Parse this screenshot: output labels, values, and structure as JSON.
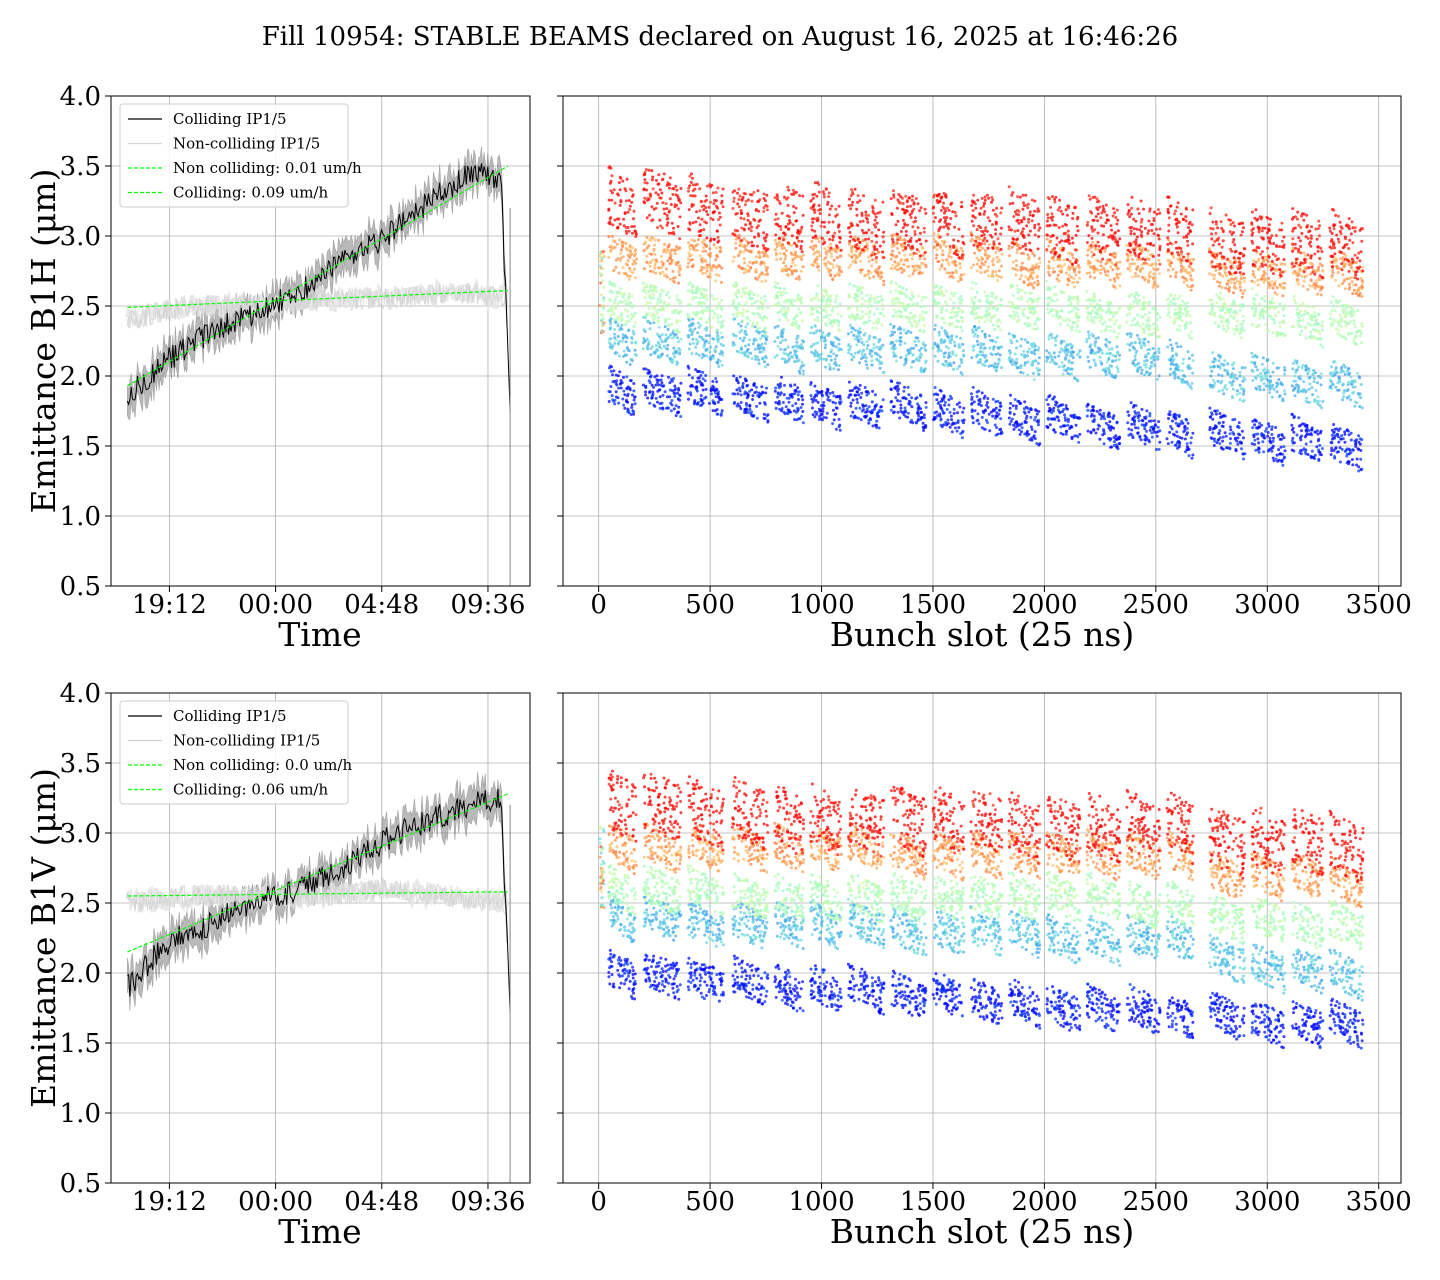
{
  "title": "Fill 10954: STABLE BEAMS declared on August 16, 2025 at 16:46:26",
  "colors": {
    "colliding": "#000000",
    "non_colliding": "#d3d3d3",
    "fit": "#00ff00",
    "band": "#808080",
    "grid": "#b0b0b0"
  },
  "chart_data": [
    {
      "type": "line",
      "panel": "B1H time evolution",
      "xlabel": "Time",
      "ylabel": "Emittance B1H (μm)",
      "ylim": [
        0.5,
        4.0
      ],
      "yticks": [
        "0.5",
        "1.0",
        "1.5",
        "2.0",
        "2.5",
        "3.0",
        "3.5",
        "4.0"
      ],
      "xlim_hours": [
        -7.44,
        11.5
      ],
      "xticks": [
        {
          "label": "19:12",
          "hours": -4.8
        },
        {
          "label": "00:00",
          "hours": 0
        },
        {
          "label": "04:48",
          "hours": 4.8
        },
        {
          "label": "09:36",
          "hours": 9.6
        }
      ],
      "grid": true,
      "legend_position": "upper-left",
      "legend": [
        {
          "label": "Colliding IP1/5",
          "style": "solid",
          "color": "#000000"
        },
        {
          "label": "Non-colliding IP1/5",
          "style": "solid",
          "color": "#d3d3d3"
        },
        {
          "label": "Non colliding: 0.01 um/h",
          "style": "dashed",
          "color": "#00ff00"
        },
        {
          "label": "Colliding: 0.09 um/h",
          "style": "dashed",
          "color": "#00ff00"
        }
      ],
      "series": [
        {
          "name": "Colliding IP1/5",
          "x_hours": [
            -6.7,
            -5.0,
            -3.0,
            -1.0,
            1.0,
            3.0,
            5.0,
            7.0,
            8.8,
            10.2,
            10.6
          ],
          "values": [
            1.85,
            2.1,
            2.3,
            2.45,
            2.6,
            2.8,
            3.0,
            3.25,
            3.45,
            3.4,
            1.75
          ]
        },
        {
          "name": "Non-colliding IP1/5",
          "x_hours": [
            -6.7,
            -4.0,
            -1.0,
            2.0,
            5.0,
            8.0,
            10.5
          ],
          "values": [
            2.4,
            2.5,
            2.5,
            2.55,
            2.55,
            2.6,
            2.55
          ]
        },
        {
          "name": "Non colliding: 0.01 um/h",
          "x_hours": [
            -6.7,
            10.5
          ],
          "values": [
            2.49,
            2.61
          ]
        },
        {
          "name": "Colliding: 0.09 um/h",
          "x_hours": [
            -6.7,
            10.5
          ],
          "values": [
            1.93,
            3.5
          ]
        }
      ]
    },
    {
      "type": "scatter",
      "panel": "B1H per bunch",
      "xlabel": "Bunch slot (25 ns)",
      "xlim": [
        -160,
        3600
      ],
      "xticks": [
        "0",
        "500",
        "1000",
        "1500",
        "2000",
        "2500",
        "3000",
        "3500"
      ],
      "ylim": [
        0.5,
        4.0
      ],
      "grid": true,
      "colormap": "rainbow",
      "trains": [
        {
          "start": 45,
          "end": 170,
          "bands": [
            1.95,
            2.3,
            2.55,
            2.9,
            3.3
          ]
        },
        {
          "start": 200,
          "end": 370,
          "bands": [
            1.95,
            2.3,
            2.55,
            2.9,
            3.3
          ]
        },
        {
          "start": 400,
          "end": 560,
          "bands": [
            1.95,
            2.3,
            2.55,
            2.9,
            3.25
          ]
        },
        {
          "start": 600,
          "end": 760,
          "bands": [
            1.9,
            2.3,
            2.55,
            2.9,
            3.2
          ]
        },
        {
          "start": 790,
          "end": 920,
          "bands": [
            1.9,
            2.25,
            2.55,
            2.9,
            3.2
          ]
        },
        {
          "start": 950,
          "end": 1090,
          "bands": [
            1.85,
            2.25,
            2.55,
            2.9,
            3.2
          ]
        },
        {
          "start": 1120,
          "end": 1280,
          "bands": [
            1.85,
            2.25,
            2.55,
            2.9,
            3.15
          ]
        },
        {
          "start": 1310,
          "end": 1470,
          "bands": [
            1.85,
            2.25,
            2.55,
            2.9,
            3.15
          ]
        },
        {
          "start": 1500,
          "end": 1640,
          "bands": [
            1.8,
            2.25,
            2.55,
            2.9,
            3.15
          ]
        },
        {
          "start": 1670,
          "end": 1810,
          "bands": [
            1.8,
            2.25,
            2.55,
            2.9,
            3.15
          ]
        },
        {
          "start": 1840,
          "end": 1980,
          "bands": [
            1.75,
            2.2,
            2.55,
            2.85,
            3.15
          ]
        },
        {
          "start": 2010,
          "end": 2160,
          "bands": [
            1.75,
            2.2,
            2.55,
            2.85,
            3.1
          ]
        },
        {
          "start": 2190,
          "end": 2340,
          "bands": [
            1.7,
            2.2,
            2.5,
            2.85,
            3.1
          ]
        },
        {
          "start": 2370,
          "end": 2520,
          "bands": [
            1.7,
            2.2,
            2.5,
            2.85,
            3.1
          ]
        },
        {
          "start": 2550,
          "end": 2670,
          "bands": [
            1.65,
            2.15,
            2.5,
            2.85,
            3.1
          ]
        },
        {
          "start": 2740,
          "end": 2900,
          "bands": [
            1.65,
            2.05,
            2.5,
            2.8,
            3.0
          ]
        },
        {
          "start": 2930,
          "end": 3080,
          "bands": [
            1.6,
            2.05,
            2.5,
            2.8,
            3.0
          ]
        },
        {
          "start": 3110,
          "end": 3250,
          "bands": [
            1.6,
            2.0,
            2.45,
            2.8,
            3.0
          ]
        },
        {
          "start": 3280,
          "end": 3430,
          "bands": [
            1.55,
            2.0,
            2.45,
            2.8,
            3.0
          ]
        }
      ]
    },
    {
      "type": "line",
      "panel": "B1V time evolution",
      "xlabel": "Time",
      "ylabel": "Emittance B1V (μm)",
      "ylim": [
        0.5,
        4.0
      ],
      "yticks": [
        "0.5",
        "1.0",
        "1.5",
        "2.0",
        "2.5",
        "3.0",
        "3.5",
        "4.0"
      ],
      "xlim_hours": [
        -7.44,
        11.5
      ],
      "xticks": [
        {
          "label": "19:12",
          "hours": -4.8
        },
        {
          "label": "00:00",
          "hours": 0
        },
        {
          "label": "04:48",
          "hours": 4.8
        },
        {
          "label": "09:36",
          "hours": 9.6
        }
      ],
      "grid": true,
      "legend_position": "upper-left",
      "legend": [
        {
          "label": "Colliding IP1/5",
          "style": "solid",
          "color": "#000000"
        },
        {
          "label": "Non-colliding IP1/5",
          "style": "solid",
          "color": "#d3d3d3"
        },
        {
          "label": "Non colliding: 0.0 um/h",
          "style": "dashed",
          "color": "#00ff00"
        },
        {
          "label": "Colliding: 0.06 um/h",
          "style": "dashed",
          "color": "#00ff00"
        }
      ],
      "series": [
        {
          "name": "Colliding IP1/5",
          "x_hours": [
            -6.7,
            -5.0,
            -3.0,
            -1.0,
            1.0,
            3.0,
            5.0,
            7.0,
            8.8,
            10.2,
            10.6
          ],
          "values": [
            1.9,
            2.2,
            2.35,
            2.5,
            2.6,
            2.75,
            2.95,
            3.1,
            3.2,
            3.25,
            1.72
          ]
        },
        {
          "name": "Non-colliding IP1/5",
          "x_hours": [
            -6.7,
            -4.0,
            -1.0,
            2.0,
            5.0,
            8.0,
            10.5
          ],
          "values": [
            2.5,
            2.55,
            2.55,
            2.55,
            2.6,
            2.55,
            2.5
          ]
        },
        {
          "name": "Non colliding: 0.0 um/h",
          "x_hours": [
            -6.7,
            10.5
          ],
          "values": [
            2.55,
            2.58
          ]
        },
        {
          "name": "Colliding: 0.06 um/h",
          "x_hours": [
            -6.7,
            10.5
          ],
          "values": [
            2.15,
            3.28
          ]
        }
      ]
    },
    {
      "type": "scatter",
      "panel": "B1V per bunch",
      "xlabel": "Bunch slot (25 ns)",
      "xlim": [
        -160,
        3600
      ],
      "xticks": [
        "0",
        "500",
        "1000",
        "1500",
        "2000",
        "2500",
        "3000",
        "3500"
      ],
      "ylim": [
        0.5,
        4.0
      ],
      "grid": true,
      "colormap": "rainbow",
      "trains": [
        {
          "start": 45,
          "end": 170,
          "bands": [
            2.05,
            2.45,
            2.65,
            2.95,
            3.25
          ]
        },
        {
          "start": 200,
          "end": 370,
          "bands": [
            2.05,
            2.45,
            2.65,
            2.95,
            3.25
          ]
        },
        {
          "start": 400,
          "end": 560,
          "bands": [
            2.0,
            2.4,
            2.65,
            2.95,
            3.2
          ]
        },
        {
          "start": 600,
          "end": 760,
          "bands": [
            2.0,
            2.4,
            2.6,
            2.95,
            3.2
          ]
        },
        {
          "start": 790,
          "end": 920,
          "bands": [
            1.95,
            2.4,
            2.6,
            2.95,
            3.15
          ]
        },
        {
          "start": 950,
          "end": 1090,
          "bands": [
            1.95,
            2.4,
            2.6,
            2.95,
            3.15
          ]
        },
        {
          "start": 1120,
          "end": 1280,
          "bands": [
            1.95,
            2.4,
            2.6,
            2.95,
            3.15
          ]
        },
        {
          "start": 1310,
          "end": 1470,
          "bands": [
            1.9,
            2.35,
            2.6,
            2.9,
            3.15
          ]
        },
        {
          "start": 1500,
          "end": 1640,
          "bands": [
            1.9,
            2.35,
            2.6,
            2.9,
            3.15
          ]
        },
        {
          "start": 1670,
          "end": 1810,
          "bands": [
            1.85,
            2.35,
            2.6,
            2.9,
            3.15
          ]
        },
        {
          "start": 1840,
          "end": 1980,
          "bands": [
            1.85,
            2.35,
            2.6,
            2.9,
            3.1
          ]
        },
        {
          "start": 2010,
          "end": 2160,
          "bands": [
            1.8,
            2.3,
            2.6,
            2.9,
            3.1
          ]
        },
        {
          "start": 2190,
          "end": 2340,
          "bands": [
            1.8,
            2.3,
            2.6,
            2.9,
            3.1
          ]
        },
        {
          "start": 2370,
          "end": 2520,
          "bands": [
            1.8,
            2.3,
            2.55,
            2.9,
            3.1
          ]
        },
        {
          "start": 2550,
          "end": 2670,
          "bands": [
            1.75,
            2.3,
            2.55,
            2.9,
            3.1
          ]
        },
        {
          "start": 2740,
          "end": 2900,
          "bands": [
            1.75,
            2.15,
            2.45,
            2.75,
            3.0
          ]
        },
        {
          "start": 2930,
          "end": 3080,
          "bands": [
            1.7,
            2.1,
            2.45,
            2.75,
            3.0
          ]
        },
        {
          "start": 3110,
          "end": 3250,
          "bands": [
            1.7,
            2.1,
            2.4,
            2.75,
            3.0
          ]
        },
        {
          "start": 3280,
          "end": 3430,
          "bands": [
            1.7,
            2.05,
            2.4,
            2.7,
            2.95
          ]
        }
      ]
    }
  ]
}
